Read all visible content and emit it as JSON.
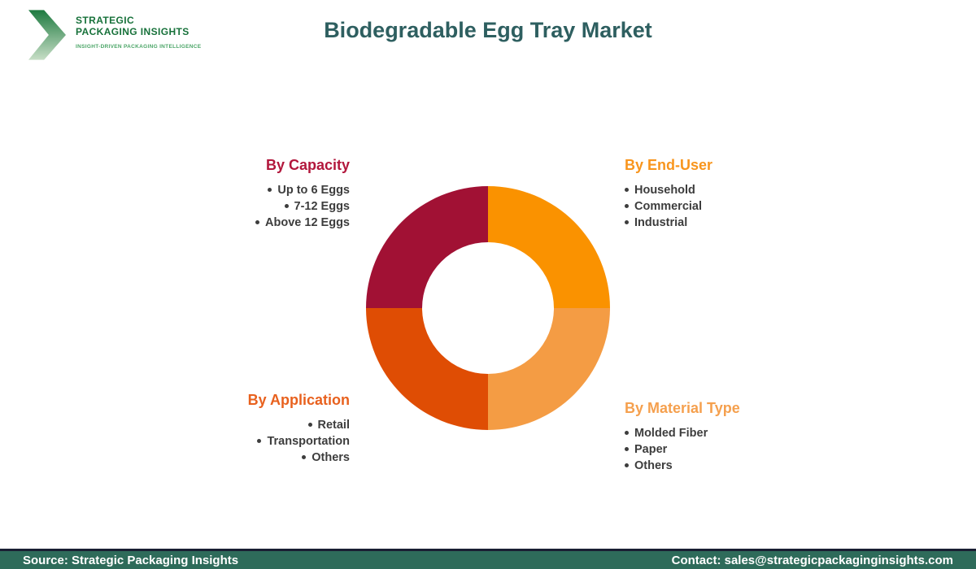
{
  "logo": {
    "line1": "STRATEGIC",
    "line2": "PACKAGING INSIGHTS",
    "tagline": "INSIGHT-DRIVEN PACKAGING INTELLIGENCE",
    "brand_color_dark": "#17713A",
    "brand_color_light": "#4BA567"
  },
  "title": "Biodegradable Egg Tray Market",
  "title_color": "#2E5F60",
  "segments": [
    {
      "heading": "By Capacity",
      "heading_color": "#B2173C",
      "items": [
        "Up to 6 Eggs",
        "7-12 Eggs",
        "Above 12 Eggs"
      ]
    },
    {
      "heading": "By End-User",
      "heading_color": "#F8951D",
      "items": [
        "Household",
        "Commercial",
        "Industrial"
      ]
    },
    {
      "heading": "By Application",
      "heading_color": "#E8611E",
      "items": [
        "Retail",
        "Transportation",
        "Others"
      ]
    },
    {
      "heading": "By Material Type",
      "heading_color": "#F5A04E",
      "items": [
        "Molded Fiber",
        "Paper",
        "Others"
      ]
    }
  ],
  "chart_data": {
    "type": "pie",
    "style": "donut",
    "title": "Biodegradable Egg Tray Market segmentation",
    "start_angle_deg": 0,
    "direction": "clockwise",
    "inner_radius_ratio": 0.54,
    "legend_position": "corner-labels",
    "segments": [
      {
        "label": "By End-User",
        "value": 25,
        "color": "#FA9200"
      },
      {
        "label": "By Material Type",
        "value": 25,
        "color": "#F49C44"
      },
      {
        "label": "By Application",
        "value": 25,
        "color": "#DF4D04"
      },
      {
        "label": "By Capacity",
        "value": 25,
        "color": "#A11134"
      }
    ]
  },
  "footer": {
    "source": "Source: Strategic Packaging Insights",
    "contact": "Contact: sales@strategicpackaginginsights.com",
    "bar_color": "#2E6B5A"
  }
}
